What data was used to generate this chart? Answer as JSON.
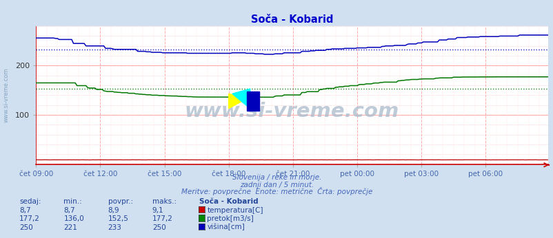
{
  "title": "Soča - Kobarid",
  "title_color": "#0000cc",
  "bg_color": "#d0e0f0",
  "plot_bg_color": "#ffffff",
  "grid_color_major": "#ffaaaa",
  "grid_color_minor": "#ffdddd",
  "grid_vcolor_major": "#ffcccc",
  "xlabel_color": "#4466aa",
  "ylim": [
    0,
    280
  ],
  "n_points": 288,
  "x_tick_labels": [
    "čet 09:00",
    "čet 12:00",
    "čet 15:00",
    "čet 18:00",
    "čet 21:00",
    "pet 00:00",
    "pet 03:00",
    "pet 06:00"
  ],
  "x_tick_positions": [
    0,
    36,
    72,
    108,
    144,
    180,
    216,
    252
  ],
  "line_visina_color": "#0000bb",
  "line_pretok_color": "#007700",
  "line_temp_color": "#bb0000",
  "avg_visina": 233,
  "avg_pretok": 152.5,
  "subtitle1": "Slovenija / reke in morje.",
  "subtitle2": "zadnji dan / 5 minut.",
  "subtitle3": "Meritve: povprečne  Enote: metrične  Črta: povprečje",
  "subtitle_color": "#4466bb",
  "table_header": [
    "sedaj:",
    "min.:",
    "povpr.:",
    "maks.:",
    "Soča - Kobarid"
  ],
  "table_col_color": "#224499",
  "row1": [
    "8,7",
    "8,7",
    "8,9",
    "9,1",
    "temperatura[C]"
  ],
  "row2": [
    "177,2",
    "136,0",
    "152,5",
    "177,2",
    "pretok[m3/s]"
  ],
  "row3": [
    "250",
    "221",
    "233",
    "250",
    "višina[cm]"
  ],
  "temp_color_box": "#cc0000",
  "pretok_color_box": "#008800",
  "visina_color_box": "#0000bb",
  "watermark": "www.si-vreme.com",
  "watermark_color": "#aabbcc",
  "side_watermark_color": "#7799bb"
}
